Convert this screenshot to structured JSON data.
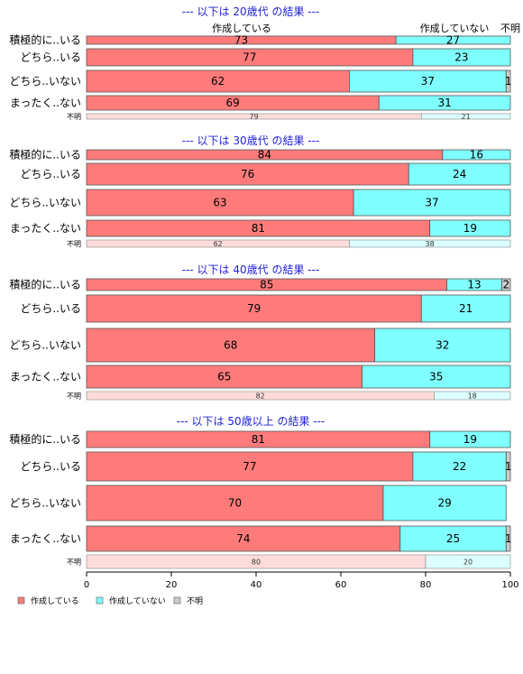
{
  "chart_data": {
    "type": "bar",
    "orientation": "horizontal",
    "stacked": "percent",
    "column_headers": [
      "作成している",
      "作成していない",
      "不明"
    ],
    "legend": [
      "作成している",
      "作成していない",
      "不明"
    ],
    "colors": {
      "yes": "#ff7b7b",
      "no": "#7fffff",
      "unknown": "#cccccc",
      "yes_light": "#ffdcdc",
      "no_light": "#dcffff"
    },
    "xlim": [
      0,
      100
    ],
    "xticks": [
      "0",
      "20",
      "40",
      "60",
      "80",
      "100"
    ],
    "legend_position": "bottom-left",
    "panels": [
      {
        "title": "--- 以下は 20歳代 の結果 ---",
        "rows": [
          {
            "label": "積極的に..いる",
            "values": [
              73,
              27,
              0
            ],
            "labels": [
              "73",
              "27",
              ""
            ]
          },
          {
            "label": "どちら..いる",
            "values": [
              77,
              23,
              0
            ],
            "labels": [
              "77",
              "23",
              ""
            ]
          },
          {
            "label": "どちら..いない",
            "values": [
              62,
              37,
              1
            ],
            "labels": [
              "62",
              "37",
              "1"
            ]
          },
          {
            "label": "まったく..ない",
            "values": [
              69,
              31,
              0
            ],
            "labels": [
              "69",
              "31",
              ""
            ]
          }
        ],
        "summary": {
          "label": "不明",
          "values": [
            79,
            21
          ],
          "labels": [
            "79",
            "21"
          ]
        }
      },
      {
        "title": "--- 以下は 30歳代 の結果 ---",
        "rows": [
          {
            "label": "積極的に..いる",
            "values": [
              84,
              16,
              0
            ],
            "labels": [
              "84",
              "16",
              ""
            ]
          },
          {
            "label": "どちら..いる",
            "values": [
              76,
              24,
              0
            ],
            "labels": [
              "76",
              "24",
              ""
            ]
          },
          {
            "label": "どちら..いない",
            "values": [
              63,
              37,
              0
            ],
            "labels": [
              "63",
              "37",
              ""
            ]
          },
          {
            "label": "まったく..ない",
            "values": [
              81,
              19,
              0
            ],
            "labels": [
              "81",
              "19",
              ""
            ]
          }
        ],
        "summary": {
          "label": "不明",
          "values": [
            62,
            38
          ],
          "labels": [
            "62",
            "38"
          ]
        }
      },
      {
        "title": "--- 以下は 40歳代 の結果 ---",
        "rows": [
          {
            "label": "積極的に..いる",
            "values": [
              85,
              13,
              2
            ],
            "labels": [
              "85",
              "13",
              "2"
            ]
          },
          {
            "label": "どちら..いる",
            "values": [
              79,
              21,
              0
            ],
            "labels": [
              "79",
              "21",
              ""
            ]
          },
          {
            "label": "どちら..いない",
            "values": [
              68,
              32,
              0
            ],
            "labels": [
              "68",
              "32",
              ""
            ]
          },
          {
            "label": "まったく..ない",
            "values": [
              65,
              35,
              0
            ],
            "labels": [
              "65",
              "35",
              ""
            ]
          }
        ],
        "summary": {
          "label": "不明",
          "values": [
            82,
            18
          ],
          "labels": [
            "82",
            "18"
          ]
        }
      },
      {
        "title": "--- 以下は 50歳以上 の結果 ---",
        "rows": [
          {
            "label": "積極的に..いる",
            "values": [
              81,
              19,
              0
            ],
            "labels": [
              "81",
              "19",
              ""
            ]
          },
          {
            "label": "どちら..いる",
            "values": [
              77,
              22,
              1
            ],
            "labels": [
              "77",
              "22",
              "1"
            ]
          },
          {
            "label": "どちら..いない",
            "values": [
              70,
              29,
              0
            ],
            "labels": [
              "70",
              "29",
              ""
            ]
          },
          {
            "label": "まったく..ない",
            "values": [
              74,
              25,
              1
            ],
            "labels": [
              "74",
              "25",
              "1"
            ]
          }
        ],
        "summary": {
          "label": "不明",
          "values": [
            80,
            20
          ],
          "labels": [
            "80",
            "20"
          ]
        }
      }
    ]
  }
}
